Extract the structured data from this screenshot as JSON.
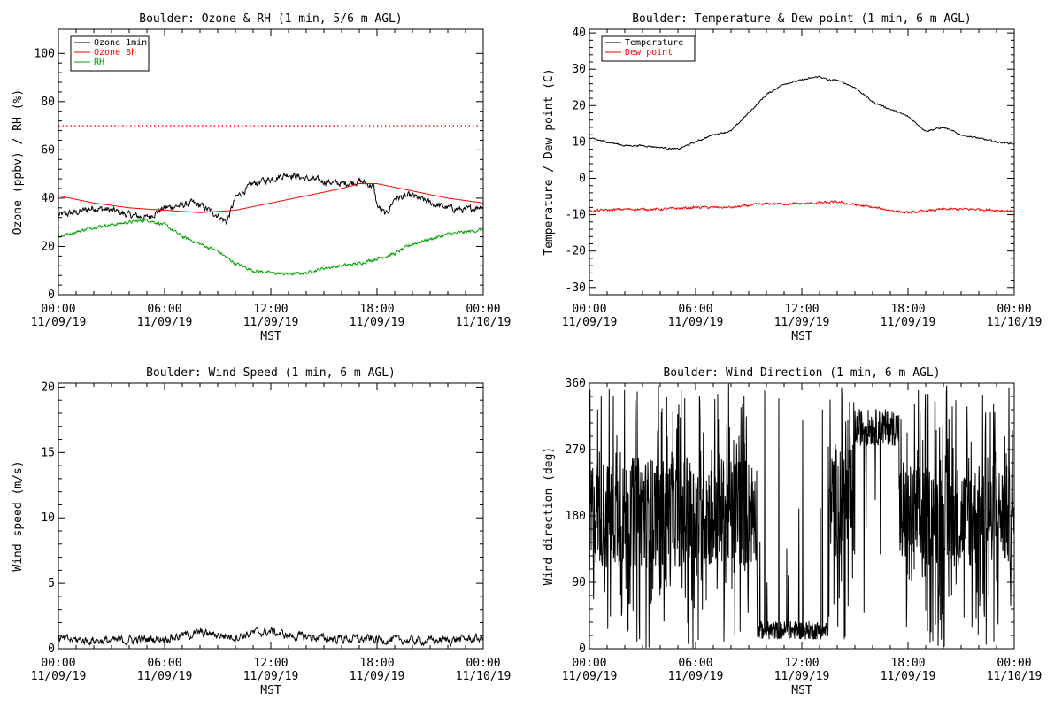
{
  "chart_data": [
    {
      "id": "ozone_rh",
      "type": "line",
      "title": "Boulder: Ozone & RH (1 min, 5/6 m AGL)",
      "ylabel": "Ozone (ppbv) / RH (%)",
      "xlabel": "MST",
      "ylim": [
        0,
        110
      ],
      "yticks": [
        0,
        20,
        40,
        60,
        80,
        100
      ],
      "xlim": [
        0,
        24
      ],
      "xticks": [
        {
          "x": 0,
          "l1": "00:00",
          "l2": "11/09/19"
        },
        {
          "x": 6,
          "l1": "06:00",
          "l2": "11/09/19"
        },
        {
          "x": 12,
          "l1": "12:00",
          "l2": "11/09/19"
        },
        {
          "x": 18,
          "l1": "18:00",
          "l2": "11/09/19"
        },
        {
          "x": 24,
          "l1": "00:00",
          "l2": "11/10/19"
        }
      ],
      "legend_position": "top-left",
      "reference_line": {
        "y": 70,
        "color": "#ff0000",
        "style": "dotted"
      },
      "series": [
        {
          "name": "Ozone 1min",
          "color": "#000000",
          "noise": 2.5,
          "x": [
            0,
            1,
            2,
            3,
            4,
            5,
            6,
            7,
            7.5,
            8,
            9,
            9.5,
            10,
            11,
            12,
            13,
            14,
            15,
            16,
            17,
            17.8,
            18,
            18.5,
            19,
            20,
            21,
            22,
            23,
            24
          ],
          "y": [
            33,
            34,
            36,
            35,
            33,
            32,
            36,
            37,
            38,
            37,
            33,
            30,
            40,
            46,
            48,
            50,
            48,
            47,
            46,
            47,
            45,
            37,
            33,
            40,
            41,
            38,
            36,
            35,
            37
          ]
        },
        {
          "name": "Ozone 8h",
          "color": "#ff0000",
          "noise": 0,
          "x": [
            0,
            2,
            4,
            6,
            8,
            10,
            12,
            14,
            16,
            17,
            18,
            20,
            22,
            24
          ],
          "y": [
            41,
            38,
            36,
            35,
            34,
            35,
            38,
            41,
            44,
            46,
            46,
            43,
            40,
            38
          ]
        },
        {
          "name": "RH",
          "color": "#00a000",
          "noise": 1.2,
          "x": [
            0,
            2,
            4,
            5,
            6,
            7,
            8,
            9,
            10,
            11,
            12,
            13,
            14,
            15,
            16,
            17,
            18,
            19,
            20,
            22,
            24
          ],
          "y": [
            24,
            28,
            30,
            31,
            29,
            24,
            21,
            18,
            13,
            10,
            9,
            8.5,
            9,
            11,
            12,
            13,
            15,
            17,
            21,
            25,
            27
          ]
        }
      ]
    },
    {
      "id": "temp_dew",
      "type": "line",
      "title": "Boulder: Temperature & Dew point (1 min, 6 m AGL)",
      "ylabel": "Temperature / Dew point (C)",
      "xlabel": "MST",
      "ylim": [
        -32,
        41
      ],
      "yticks": [
        -30,
        -20,
        -10,
        0,
        10,
        20,
        30,
        40
      ],
      "xlim": [
        0,
        24
      ],
      "xticks": [
        {
          "x": 0,
          "l1": "00:00",
          "l2": "11/09/19"
        },
        {
          "x": 6,
          "l1": "06:00",
          "l2": "11/09/19"
        },
        {
          "x": 12,
          "l1": "12:00",
          "l2": "11/09/19"
        },
        {
          "x": 18,
          "l1": "18:00",
          "l2": "11/09/19"
        },
        {
          "x": 24,
          "l1": "00:00",
          "l2": "11/10/19"
        }
      ],
      "legend_position": "top-left",
      "series": [
        {
          "name": "Temperature",
          "color": "#000000",
          "noise": 0.4,
          "x": [
            0,
            1,
            2,
            3,
            4,
            5,
            6,
            7,
            8,
            9,
            10,
            11,
            12,
            13,
            13.5,
            14,
            15,
            16,
            17,
            18,
            19,
            20,
            21,
            22,
            23,
            24
          ],
          "y": [
            11,
            10,
            9,
            9,
            8.5,
            8,
            10,
            12,
            13,
            18,
            23,
            26,
            27,
            28,
            27,
            27,
            25,
            21,
            19,
            17,
            13,
            14,
            12,
            11,
            10,
            9.5
          ]
        },
        {
          "name": "Dew point",
          "color": "#ff0000",
          "noise": 0.6,
          "x": [
            0,
            2,
            4,
            6,
            8,
            10,
            12,
            14,
            16,
            18,
            20,
            22,
            24
          ],
          "y": [
            -9,
            -8.5,
            -8.5,
            -8,
            -8,
            -7,
            -7,
            -6.5,
            -8,
            -9.5,
            -8.5,
            -8.5,
            -9
          ]
        }
      ]
    },
    {
      "id": "wind_speed",
      "type": "line",
      "title": "Boulder: Wind Speed (1 min, 6 m AGL)",
      "ylabel": "Wind speed (m/s)",
      "xlabel": "MST",
      "ylim": [
        0,
        20.3
      ],
      "yticks": [
        0,
        5,
        10,
        15,
        20
      ],
      "xlim": [
        0,
        24
      ],
      "xticks": [
        {
          "x": 0,
          "l1": "00:00",
          "l2": "11/09/19"
        },
        {
          "x": 6,
          "l1": "06:00",
          "l2": "11/09/19"
        },
        {
          "x": 12,
          "l1": "12:00",
          "l2": "11/09/19"
        },
        {
          "x": 18,
          "l1": "18:00",
          "l2": "11/09/19"
        },
        {
          "x": 24,
          "l1": "00:00",
          "l2": "11/10/19"
        }
      ],
      "series": [
        {
          "name": "",
          "color": "#000000",
          "noise": 0.6,
          "clip_min": 0,
          "x": [
            0,
            3,
            6,
            7,
            8,
            10,
            11,
            12,
            13,
            15,
            18,
            21,
            24
          ],
          "y": [
            0.7,
            0.6,
            0.8,
            1.0,
            1.2,
            0.9,
            1.2,
            1.3,
            1.0,
            0.8,
            0.7,
            0.6,
            0.8
          ]
        }
      ]
    },
    {
      "id": "wind_dir",
      "type": "line",
      "title": "Boulder: Wind Direction (1 min, 6 m AGL)",
      "ylabel": "Wind direction (deg)",
      "xlabel": "MST",
      "ylim": [
        0,
        360
      ],
      "yticks": [
        0,
        90,
        180,
        270,
        360
      ],
      "xlim": [
        0,
        24
      ],
      "xticks": [
        {
          "x": 0,
          "l1": "00:00",
          "l2": "11/09/19"
        },
        {
          "x": 6,
          "l1": "06:00",
          "l2": "11/09/19"
        },
        {
          "x": 12,
          "l1": "12:00",
          "l2": "11/09/19"
        },
        {
          "x": 18,
          "l1": "18:00",
          "l2": "11/09/19"
        },
        {
          "x": 24,
          "l1": "00:00",
          "l2": "11/10/19"
        }
      ],
      "series": [
        {
          "name": "",
          "color": "#000000",
          "mode": "winddir",
          "segments": [
            {
              "x0": 0,
              "x1": 9.5,
              "base": 185,
              "spread": 150,
              "wild": 0.35
            },
            {
              "x0": 9.5,
              "x1": 13.5,
              "base": 25,
              "spread": 25,
              "wild": 0.04
            },
            {
              "x0": 13.5,
              "x1": 15,
              "base": 200,
              "spread": 160,
              "wild": 0.3
            },
            {
              "x0": 15,
              "x1": 17.5,
              "base": 300,
              "spread": 50,
              "wild": 0.05
            },
            {
              "x0": 17.5,
              "x1": 24,
              "base": 180,
              "spread": 140,
              "wild": 0.35
            }
          ]
        }
      ]
    }
  ]
}
